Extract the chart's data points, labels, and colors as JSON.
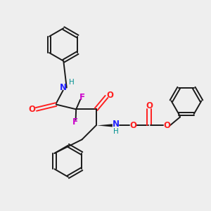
{
  "bg_color": "#eeeeee",
  "bond_color": "#1a1a1a",
  "N_color": "#2020ff",
  "O_color": "#ff2020",
  "F_color": "#cc00cc",
  "H_color": "#009090",
  "figsize": [
    3.0,
    3.0
  ],
  "dpi": 100,
  "xlim": [
    0,
    10
  ],
  "ylim": [
    0,
    10
  ]
}
